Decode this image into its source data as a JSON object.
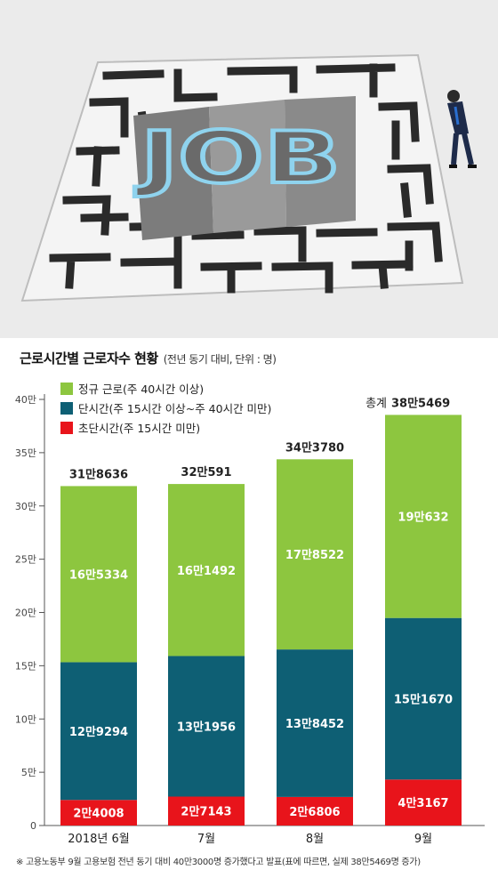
{
  "illustration": {
    "word": "JOB"
  },
  "chart_data": {
    "type": "bar",
    "stacked": true,
    "title": "근로시간별 근로자수 현황",
    "subtitle": "(전년 동기 대비, 단위 : 명)",
    "categories": [
      "2018년 6월",
      "7월",
      "8월",
      "9월"
    ],
    "ylim": [
      0,
      400000
    ],
    "yticks": [
      0,
      50000,
      100000,
      150000,
      200000,
      250000,
      300000,
      350000,
      400000
    ],
    "ytick_labels": [
      "0",
      "5만",
      "10만",
      "15만",
      "20만",
      "25만",
      "30만",
      "35만",
      "40만"
    ],
    "legend_position": "top-left",
    "series": [
      {
        "name": "초단시간(주 15시간 미만)",
        "color": "#e8141b",
        "values": [
          24008,
          27143,
          26806,
          43167
        ],
        "labels": [
          "2만4008",
          "2만7143",
          "2만6806",
          "4만3167"
        ]
      },
      {
        "name": "단시간(주 15시간 이상~주 40시간 미만)",
        "color": "#0e5f74",
        "values": [
          129294,
          131956,
          138452,
          151670
        ],
        "labels": [
          "12만9294",
          "13만1956",
          "13만8452",
          "15만1670"
        ]
      },
      {
        "name": "정규 근로(주 40시간 이상)",
        "color": "#8dc63f",
        "values": [
          165334,
          161492,
          178522,
          190632
        ],
        "labels": [
          "16만5334",
          "16만1492",
          "17만8522",
          "19만632"
        ]
      }
    ],
    "totals": [
      318636,
      320591,
      343780,
      385469
    ],
    "total_labels": [
      "31만8636",
      "32만591",
      "34만3780",
      "38만5469"
    ],
    "total_prefix_last": "총계",
    "grid": false
  },
  "footnote": "※ 고용노동부 9월 고용보험 전년 동기 대비 40만3000명 증가했다고 발표(표에 따르면, 실제 38만5469명 증가)"
}
